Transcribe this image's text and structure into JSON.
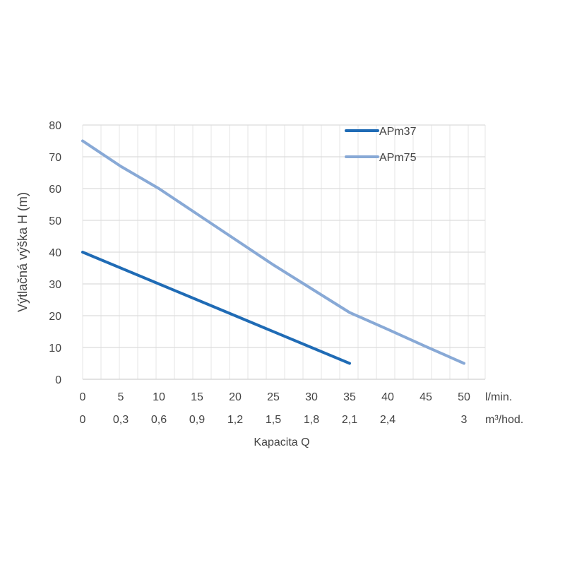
{
  "chart_data": {
    "type": "line",
    "title": "",
    "xlabel": "Kapacita Q",
    "ylabel": "Výtlačná výška H (m)",
    "xlim": [
      0,
      52.8
    ],
    "ylim": [
      0,
      80
    ],
    "grid": true,
    "legend_position": "top-right",
    "x_ticks": [
      0,
      5,
      10,
      15,
      20,
      25,
      30,
      35,
      40,
      45,
      50
    ],
    "x_tick_labels": [
      "0",
      "5",
      "10",
      "15",
      "20",
      "25",
      "30",
      "35",
      "40",
      "45",
      "50"
    ],
    "x_unit": "l/min.",
    "x2_tick_labels": [
      "0",
      "0,3",
      "0,6",
      "0,9",
      "1,2",
      "1,5",
      "1,8",
      "2,1",
      "2,4",
      "3"
    ],
    "x2_tick_positions": [
      0,
      5,
      10,
      15,
      20,
      25,
      30,
      35,
      40,
      50
    ],
    "x2_unit": "m³/hod.",
    "y_ticks": [
      0,
      10,
      20,
      30,
      40,
      50,
      60,
      70,
      80
    ],
    "y_tick_labels": [
      "0",
      "10",
      "20",
      "30",
      "40",
      "50",
      "60",
      "70",
      "80"
    ],
    "series": [
      {
        "name": "APm37",
        "color": "#1f6bb5",
        "x": [
          0,
          10,
          20,
          30,
          35
        ],
        "y": [
          40,
          30,
          20,
          10,
          5
        ]
      },
      {
        "name": "APm75",
        "color": "#88a9d6",
        "x": [
          0,
          5,
          10,
          15,
          20,
          25,
          30,
          35,
          40,
          45,
          50
        ],
        "y": [
          75,
          67,
          60,
          52,
          44,
          36,
          28.5,
          21,
          15.7,
          10.3,
          5
        ]
      }
    ]
  }
}
